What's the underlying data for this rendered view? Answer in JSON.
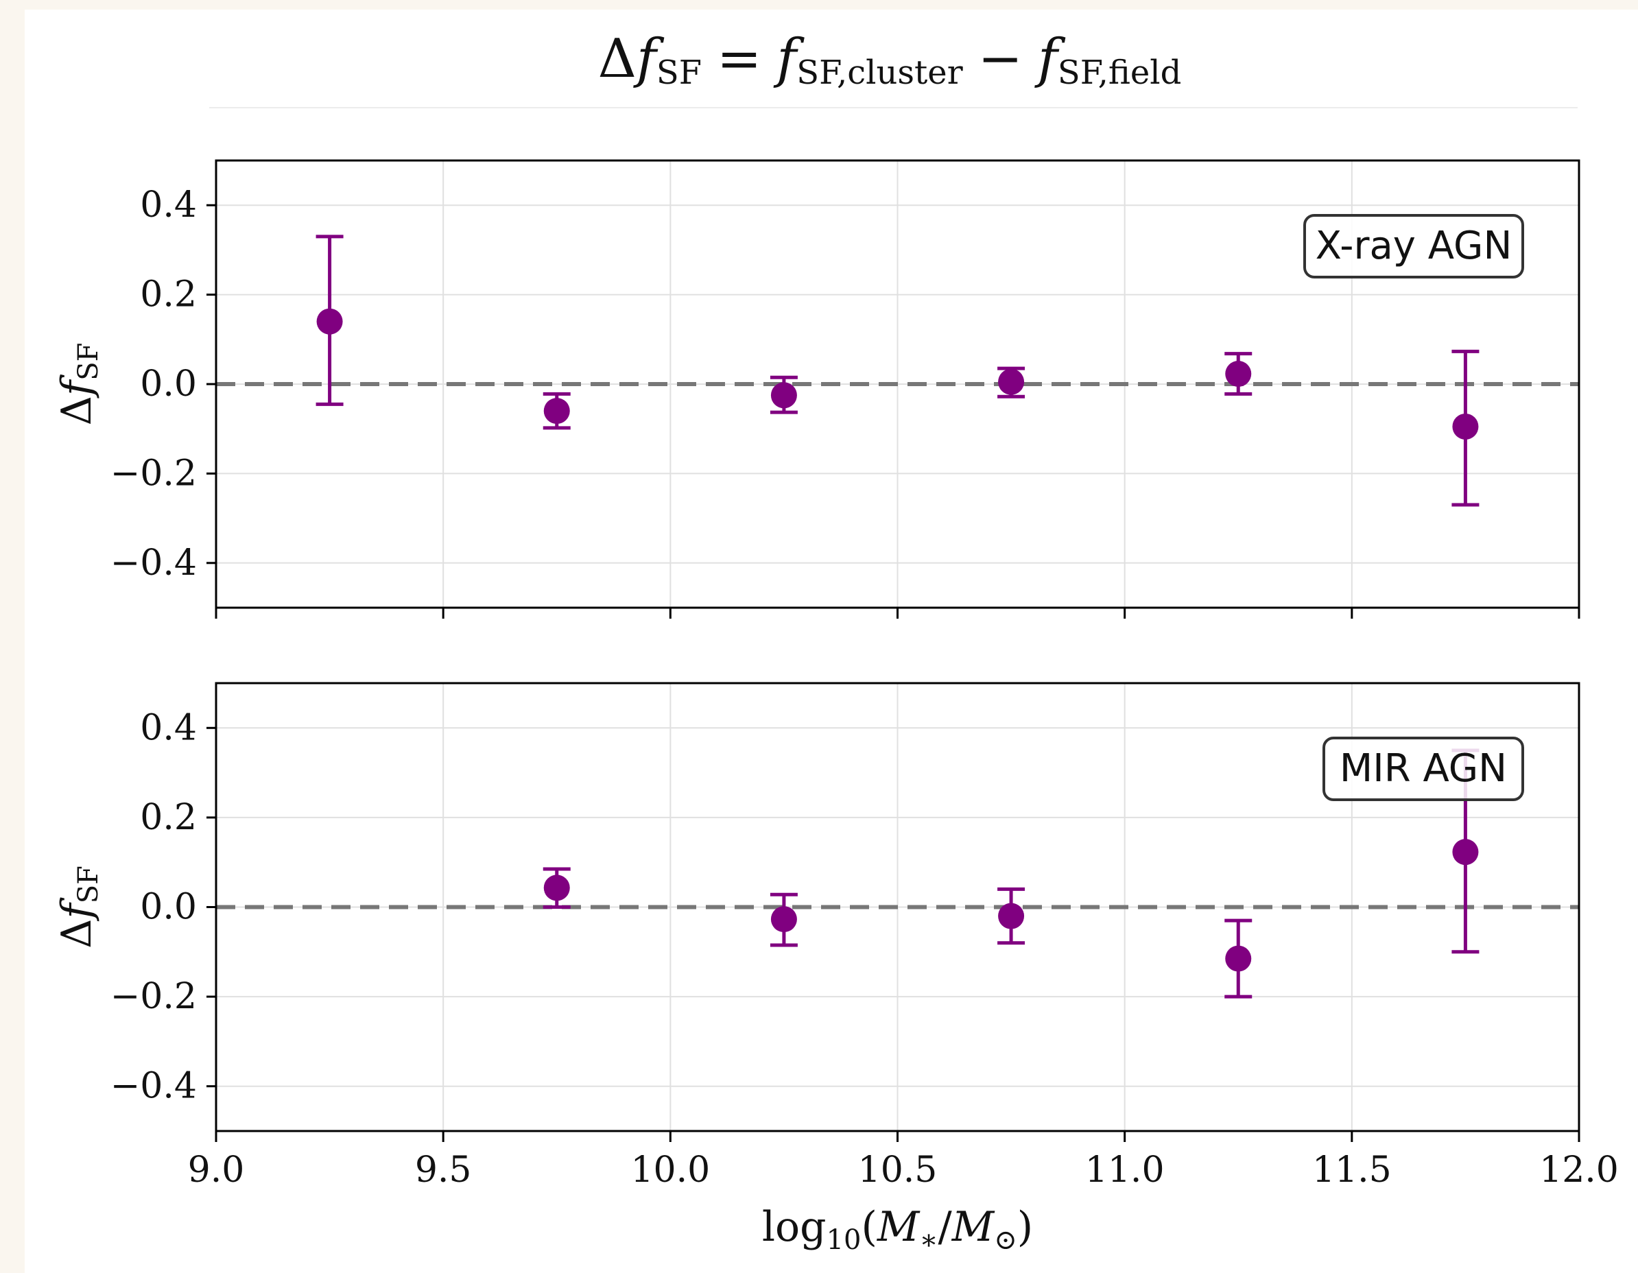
{
  "figure_title": {
    "lhs_delta": "Δ",
    "lhs_f": "f",
    "lhs_sub": "SF",
    "equals": "=",
    "t1_f": "f",
    "t1_sub": "SF,cluster",
    "minus": "−",
    "t2_f": "f",
    "t2_sub": "SF,field"
  },
  "colors": {
    "series": "#800080",
    "reference_line": "#777777",
    "grid": "#e0e0e0",
    "axis": "#000000",
    "page_bg": "#faf6ef",
    "panel_bg": "#ffffff"
  },
  "chart_data": [
    {
      "type": "scatter",
      "panel_label": "X-ray AGN",
      "legend_position": "top-right",
      "grid": true,
      "xlim": [
        9.0,
        12.0
      ],
      "ylim": [
        -0.5,
        0.5
      ],
      "xticks": [
        9.0,
        9.5,
        10.0,
        10.5,
        11.0,
        11.5,
        12.0
      ],
      "xtick_labels_visible": false,
      "yticks": [
        -0.4,
        -0.2,
        0.0,
        0.2,
        0.4
      ],
      "ytick_labels": [
        "−0.4",
        "−0.2",
        "0.0",
        "0.2",
        "0.4"
      ],
      "ylabel": {
        "delta": "Δ",
        "f": "f",
        "sub": "SF"
      },
      "reference_y": 0.0,
      "points": [
        {
          "x": 9.25,
          "y": 0.14,
          "ylow": -0.045,
          "yhigh": 0.33
        },
        {
          "x": 9.75,
          "y": -0.06,
          "ylow": -0.098,
          "yhigh": -0.022
        },
        {
          "x": 10.25,
          "y": -0.025,
          "ylow": -0.063,
          "yhigh": 0.015
        },
        {
          "x": 10.75,
          "y": 0.005,
          "ylow": -0.028,
          "yhigh": 0.035
        },
        {
          "x": 11.25,
          "y": 0.023,
          "ylow": -0.022,
          "yhigh": 0.068
        },
        {
          "x": 11.75,
          "y": -0.095,
          "ylow": -0.27,
          "yhigh": 0.073
        }
      ]
    },
    {
      "type": "scatter",
      "panel_label": "MIR AGN",
      "legend_position": "top-right",
      "grid": true,
      "xlim": [
        9.0,
        12.0
      ],
      "ylim": [
        -0.5,
        0.5
      ],
      "xticks": [
        9.0,
        9.5,
        10.0,
        10.5,
        11.0,
        11.5,
        12.0
      ],
      "xtick_labels": [
        "9.0",
        "9.5",
        "10.0",
        "10.5",
        "11.0",
        "11.5",
        "12.0"
      ],
      "yticks": [
        -0.4,
        -0.2,
        0.0,
        0.2,
        0.4
      ],
      "ytick_labels": [
        "−0.4",
        "−0.2",
        "0.0",
        "0.2",
        "0.4"
      ],
      "ylabel": {
        "delta": "Δ",
        "f": "f",
        "sub": "SF"
      },
      "xlabel": {
        "log": "log",
        "log_sub": "10",
        "open": "(",
        "m": "M",
        "m_sub": "∗",
        "slash": "/",
        "msun": "M",
        "msun_sub": "⊙",
        "close": ")"
      },
      "reference_y": 0.0,
      "points": [
        {
          "x": 9.75,
          "y": 0.043,
          "ylow": 0.0,
          "yhigh": 0.085
        },
        {
          "x": 10.25,
          "y": -0.027,
          "ylow": -0.085,
          "yhigh": 0.028
        },
        {
          "x": 10.75,
          "y": -0.02,
          "ylow": -0.08,
          "yhigh": 0.04
        },
        {
          "x": 11.25,
          "y": -0.115,
          "ylow": -0.2,
          "yhigh": -0.03
        },
        {
          "x": 11.75,
          "y": 0.123,
          "ylow": -0.1,
          "yhigh": 0.35
        }
      ]
    }
  ]
}
